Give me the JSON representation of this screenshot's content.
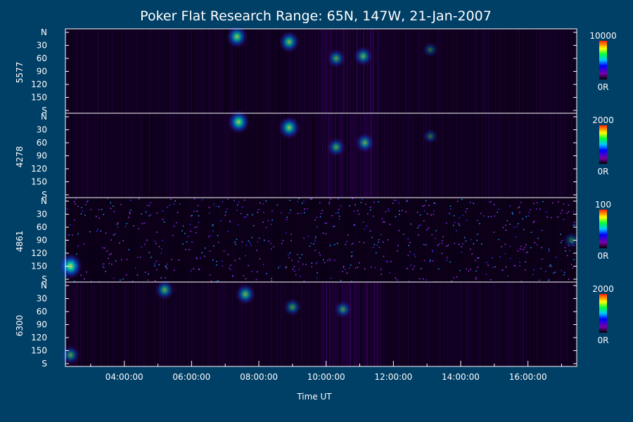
{
  "chart_data": {
    "type": "heatmap",
    "title": "Poker Flat Research Range: 65N, 147W, 21-Jan-2007",
    "xlabel": "Time UT",
    "x_ticks": [
      "04:00:00",
      "06:00:00",
      "08:00:00",
      "10:00:00",
      "12:00:00",
      "14:00:00",
      "16:00:00"
    ],
    "x_range_hours": [
      2.25,
      17.45
    ],
    "y_tick_labels": [
      "N",
      "30",
      "60",
      "90",
      "120",
      "150",
      "S"
    ],
    "y_range_deg": [
      0,
      180
    ],
    "panels": [
      {
        "name": "5577",
        "scale_max": "10000",
        "scale_min": "0R",
        "features": [
          {
            "time_h": 7.35,
            "zenith_deg": 10,
            "intensity": 0.75
          },
          {
            "time_h": 8.9,
            "zenith_deg": 22,
            "intensity": 0.7
          },
          {
            "time_h": 10.3,
            "zenith_deg": 60,
            "intensity": 0.55
          },
          {
            "time_h": 11.1,
            "zenith_deg": 55,
            "intensity": 0.6
          },
          {
            "time_h": 13.1,
            "zenith_deg": 40,
            "intensity": 0.35
          }
        ]
      },
      {
        "name": "4278",
        "scale_max": "2000",
        "scale_min": "0R",
        "features": [
          {
            "time_h": 7.4,
            "zenith_deg": 12,
            "intensity": 0.8
          },
          {
            "time_h": 8.9,
            "zenith_deg": 25,
            "intensity": 0.75
          },
          {
            "time_h": 10.3,
            "zenith_deg": 70,
            "intensity": 0.55
          },
          {
            "time_h": 11.15,
            "zenith_deg": 60,
            "intensity": 0.6
          },
          {
            "time_h": 13.1,
            "zenith_deg": 45,
            "intensity": 0.35
          }
        ]
      },
      {
        "name": "4861",
        "scale_max": "100",
        "scale_min": "0R",
        "features": [
          {
            "time_h": 2.4,
            "zenith_deg": 150,
            "intensity": 0.9
          },
          {
            "time_h": 17.3,
            "zenith_deg": 90,
            "intensity": 0.4
          }
        ]
      },
      {
        "name": "6300",
        "scale_max": "2000",
        "scale_min": "0R",
        "features": [
          {
            "time_h": 5.2,
            "zenith_deg": 10,
            "intensity": 0.6
          },
          {
            "time_h": 7.6,
            "zenith_deg": 20,
            "intensity": 0.65
          },
          {
            "time_h": 9.0,
            "zenith_deg": 50,
            "intensity": 0.5
          },
          {
            "time_h": 10.5,
            "zenith_deg": 55,
            "intensity": 0.5
          },
          {
            "time_h": 2.4,
            "zenith_deg": 160,
            "intensity": 0.55
          }
        ]
      }
    ]
  }
}
